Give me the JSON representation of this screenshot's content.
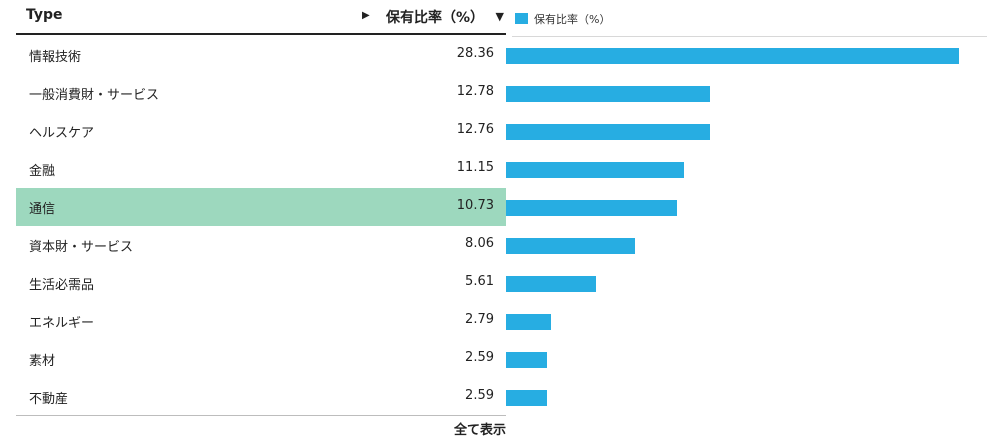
{
  "table": {
    "col_type": "Type",
    "header_arrow": "▶",
    "col_ratio": "保有比率（%）",
    "sort_icon": "▼"
  },
  "legend": {
    "label": "保有比率（%）",
    "color": "#27ade2"
  },
  "highlight_color": "#9dd8be",
  "highlight_row": "通信",
  "footer": {
    "show_all": "全て表示"
  },
  "chart_data": {
    "type": "bar",
    "orientation": "horizontal",
    "categories": [
      "情報技術",
      "一般消費財・サービス",
      "ヘルスケア",
      "金融",
      "通信",
      "資本財・サービス",
      "生活必需品",
      "エネルギー",
      "素材",
      "不動産"
    ],
    "series": [
      {
        "name": "保有比率（%）",
        "values": [
          28.36,
          12.78,
          12.76,
          11.15,
          10.73,
          8.06,
          5.61,
          2.79,
          2.59,
          2.59
        ]
      }
    ],
    "value_labels": [
      "28.36",
      "12.78",
      "12.76",
      "11.15",
      "10.73",
      "8.06",
      "5.61",
      "2.79",
      "2.59",
      "2.59"
    ],
    "xlim": [
      0,
      30
    ],
    "legend_position": "top-left",
    "grid": false
  }
}
